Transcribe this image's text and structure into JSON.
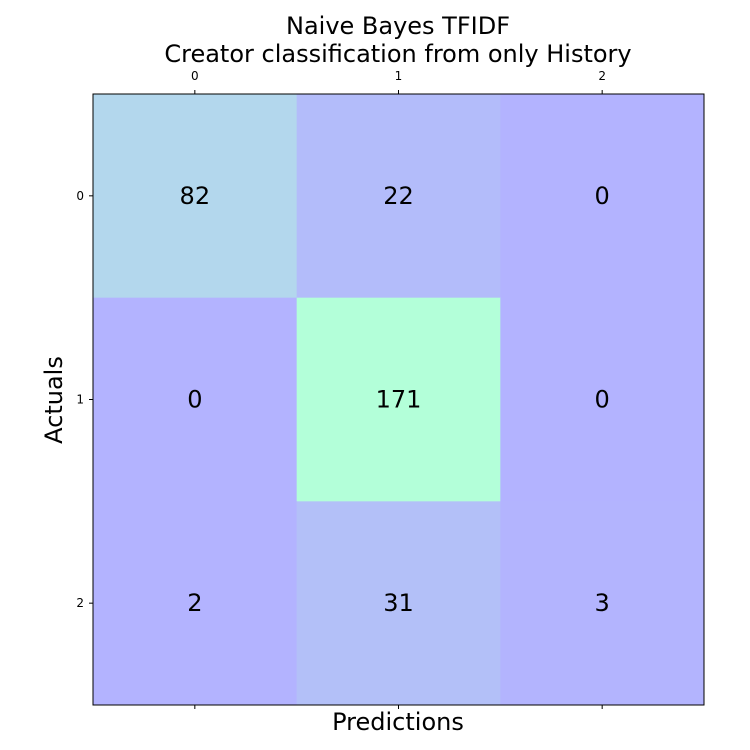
{
  "chart_data": {
    "type": "heatmap",
    "title_lines": [
      "Naive Bayes TFIDF",
      "Creator classification from only History"
    ],
    "xlabel": "Predictions",
    "ylabel": "Actuals",
    "x_categories": [
      "0",
      "1",
      "2"
    ],
    "y_categories": [
      "0",
      "1",
      "2"
    ],
    "values": [
      [
        82,
        22,
        0
      ],
      [
        0,
        171,
        0
      ],
      [
        2,
        31,
        3
      ]
    ],
    "x_ticks_position": "top",
    "grid": false,
    "colorbar": false,
    "colors": {
      "low": "#b3b3ff",
      "high": "#b3ffd9"
    }
  }
}
